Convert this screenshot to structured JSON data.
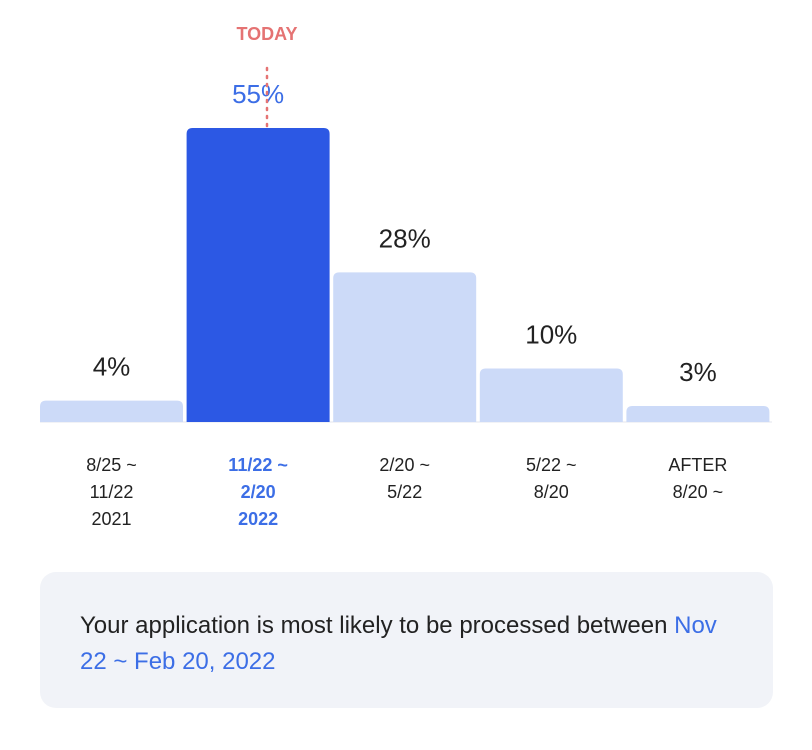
{
  "chart_data": {
    "type": "bar",
    "categories": [
      [
        "8/25 ~",
        "11/22",
        "2021"
      ],
      [
        "11/22 ~",
        "2/20",
        "2022"
      ],
      [
        "2/20 ~",
        "5/22"
      ],
      [
        "5/22 ~",
        "8/20"
      ],
      [
        "AFTER",
        "8/20 ~"
      ]
    ],
    "values": [
      4,
      55,
      28,
      10,
      3
    ],
    "value_labels": [
      "4%",
      "55%",
      "28%",
      "10%",
      "3%"
    ],
    "highlight_index": 1,
    "marker": {
      "label": "TODAY",
      "category_index": 1,
      "color": "#e57373"
    },
    "colors": {
      "bar": "#ccdaf8",
      "highlight": "#2c58e4",
      "highlight_text": "#3c6ee6"
    },
    "ylim": [
      0,
      55
    ],
    "grid": false,
    "legend": "none"
  },
  "info": {
    "text_before": "Your application is most likely to be processed between ",
    "highlight": "Nov 22 ~ Feb 20, 2022"
  }
}
